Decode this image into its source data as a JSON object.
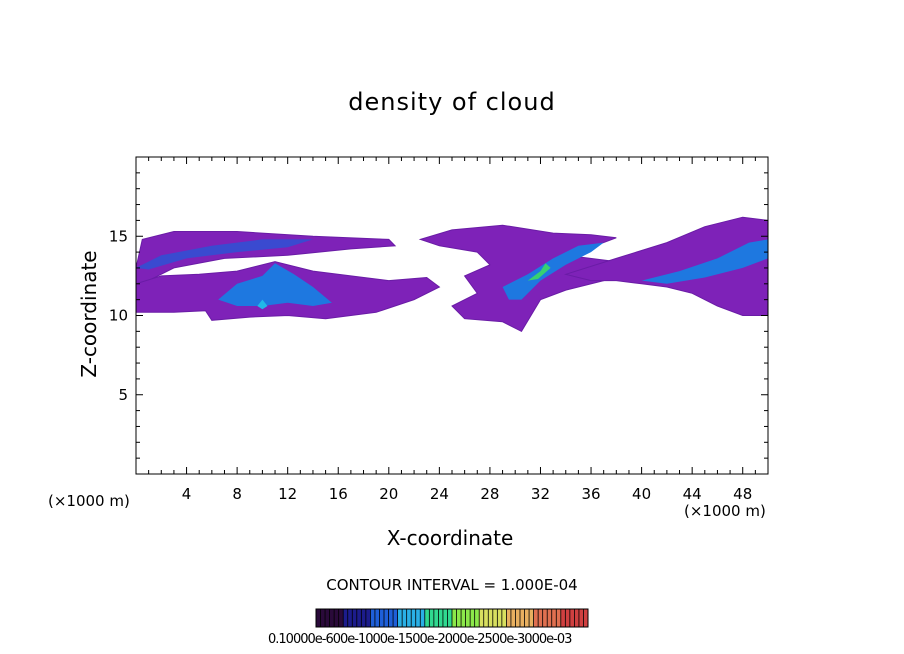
{
  "chart_data": {
    "type": "heatmap",
    "title": "density of cloud",
    "xlabel": "X-coordinate",
    "ylabel": "Z-coordinate",
    "x_unit": "(×1000 m)",
    "xlim": [
      0,
      50
    ],
    "ylim": [
      0,
      20
    ],
    "x_ticks": [
      4,
      8,
      12,
      16,
      20,
      24,
      28,
      32,
      36,
      40,
      44,
      48
    ],
    "y_ticks": [
      5,
      10,
      15
    ],
    "grid": false,
    "contour_interval": "CONTOUR INTERVAL = 1.000E-04",
    "colorbar_labels": "0.10000e-600e-1000e-1500e-2000e-2500e-3000e-03",
    "colorbar_colors": [
      "#2a0a3a",
      "#1c1c8c",
      "#1e5fd8",
      "#2ab0e6",
      "#30d890",
      "#8ce84a",
      "#d8e060",
      "#e8b060",
      "#e07050",
      "#d04040"
    ],
    "regions": [
      {
        "name": "left-upper-band",
        "level": 0.4,
        "points": [
          [
            0,
            13
          ],
          [
            0.5,
            14.8
          ],
          [
            3,
            15.3
          ],
          [
            8,
            15.3
          ],
          [
            14,
            15.0
          ],
          [
            20,
            14.8
          ],
          [
            20.5,
            14.4
          ],
          [
            17,
            14.2
          ],
          [
            12,
            13.8
          ],
          [
            7,
            13.6
          ],
          [
            3,
            13.0
          ],
          [
            1,
            12.2
          ],
          [
            0,
            11.5
          ]
        ]
      },
      {
        "name": "left-lower-cloud",
        "level": 0.5,
        "points": [
          [
            0,
            10.2
          ],
          [
            0,
            12.0
          ],
          [
            2,
            12.5
          ],
          [
            5,
            12.6
          ],
          [
            8,
            12.8
          ],
          [
            11,
            13.4
          ],
          [
            14,
            12.8
          ],
          [
            17,
            12.5
          ],
          [
            20,
            12.2
          ],
          [
            23,
            12.4
          ],
          [
            24,
            11.8
          ],
          [
            22,
            11.0
          ],
          [
            19,
            10.2
          ],
          [
            17,
            10.0
          ],
          [
            15,
            9.8
          ],
          [
            12,
            10.0
          ],
          [
            9,
            9.9
          ],
          [
            6,
            9.7
          ],
          [
            5.5,
            10.3
          ],
          [
            3,
            10.2
          ]
        ]
      },
      {
        "name": "center-cloud",
        "level": 0.5,
        "points": [
          [
            22.5,
            14.8
          ],
          [
            25,
            15.4
          ],
          [
            29,
            15.7
          ],
          [
            33,
            15.2
          ],
          [
            36,
            15.1
          ],
          [
            38,
            14.9
          ],
          [
            36,
            14.3
          ],
          [
            34,
            13.8
          ],
          [
            38,
            13.4
          ],
          [
            40,
            13.0
          ],
          [
            38,
            12.4
          ],
          [
            34,
            11.6
          ],
          [
            32,
            11.0
          ],
          [
            30.5,
            9.0
          ],
          [
            29,
            9.6
          ],
          [
            26,
            9.8
          ],
          [
            25,
            10.6
          ],
          [
            27,
            11.4
          ],
          [
            26,
            12.5
          ],
          [
            28,
            13.2
          ],
          [
            27,
            14.0
          ],
          [
            24,
            14.4
          ]
        ]
      },
      {
        "name": "right-cloud",
        "level": 0.5,
        "points": [
          [
            34,
            12.6
          ],
          [
            38,
            13.6
          ],
          [
            42,
            14.6
          ],
          [
            45,
            15.6
          ],
          [
            48,
            16.2
          ],
          [
            50,
            16.0
          ],
          [
            50,
            10.0
          ],
          [
            48,
            10.0
          ],
          [
            46,
            10.6
          ],
          [
            44,
            11.4
          ],
          [
            42,
            11.8
          ],
          [
            40,
            12.0
          ],
          [
            38,
            12.2
          ],
          [
            36,
            12.2
          ]
        ]
      },
      {
        "name": "left-cloud-core",
        "level": 1.0,
        "points": [
          [
            6.5,
            11.0
          ],
          [
            8,
            12.0
          ],
          [
            10,
            12.5
          ],
          [
            11,
            13.3
          ],
          [
            12.5,
            12.6
          ],
          [
            14,
            11.8
          ],
          [
            15.5,
            10.8
          ],
          [
            14,
            10.6
          ],
          [
            12,
            10.8
          ],
          [
            10,
            10.6
          ],
          [
            8,
            10.6
          ]
        ]
      },
      {
        "name": "left-band-core",
        "level": 0.8,
        "points": [
          [
            0,
            13.0
          ],
          [
            2,
            13.8
          ],
          [
            6,
            14.4
          ],
          [
            10,
            14.8
          ],
          [
            14,
            14.8
          ],
          [
            12,
            14.3
          ],
          [
            8,
            14.0
          ],
          [
            4,
            13.6
          ],
          [
            1,
            12.9
          ]
        ]
      },
      {
        "name": "center-core",
        "level": 1.0,
        "points": [
          [
            29,
            11.8
          ],
          [
            31,
            12.6
          ],
          [
            33,
            13.6
          ],
          [
            35,
            14.4
          ],
          [
            37,
            14.6
          ],
          [
            36,
            14.0
          ],
          [
            34,
            13.2
          ],
          [
            32,
            12.2
          ],
          [
            30.5,
            11.0
          ],
          [
            29.5,
            11.0
          ]
        ]
      },
      {
        "name": "right-core",
        "level": 1.0,
        "points": [
          [
            40,
            12.2
          ],
          [
            43,
            12.8
          ],
          [
            46,
            13.6
          ],
          [
            48.5,
            14.6
          ],
          [
            50,
            14.8
          ],
          [
            50,
            13.6
          ],
          [
            48,
            13.0
          ],
          [
            45,
            12.4
          ],
          [
            42,
            12.0
          ]
        ]
      },
      {
        "name": "left-hot-spot",
        "level": 1.4,
        "points": [
          [
            9.6,
            10.6
          ],
          [
            10.0,
            11.0
          ],
          [
            10.4,
            10.6
          ],
          [
            10.0,
            10.4
          ]
        ]
      },
      {
        "name": "center-hot-spot",
        "level": 1.6,
        "points": [
          [
            31,
            12.2
          ],
          [
            32,
            12.8
          ],
          [
            32.4,
            13.3
          ],
          [
            32.8,
            13.0
          ],
          [
            31.8,
            12.3
          ]
        ]
      }
    ]
  }
}
